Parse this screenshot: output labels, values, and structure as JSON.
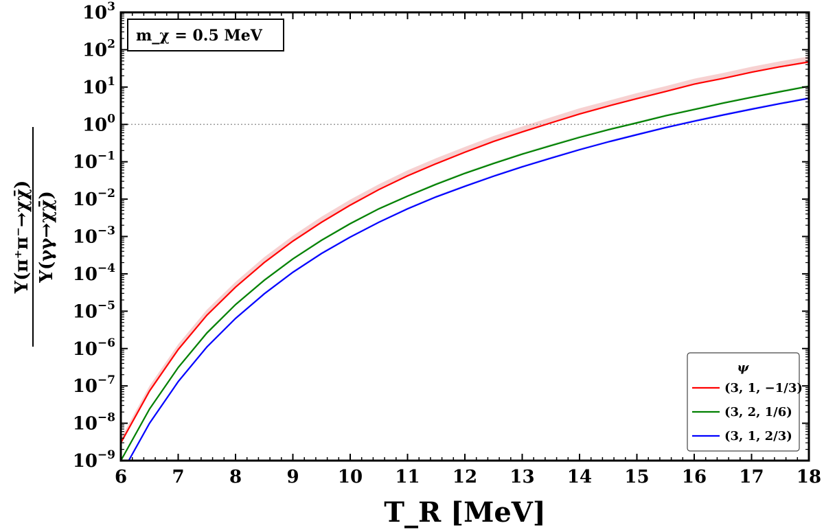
{
  "chart_data": {
    "type": "line",
    "annotation": "m_χ = 0.5 MeV",
    "xlabel": "T_R [MeV]",
    "ylabel_numerator": "Y(π⁺π⁻→χχ̄)",
    "ylabel_denominator": "Y(γγ→χχ̄)",
    "xlim": [
      6,
      18
    ],
    "ylim": [
      1e-09,
      1000
    ],
    "yscale": "log",
    "reference_line": {
      "y": 1,
      "style": "dotted",
      "color": "#999999"
    },
    "x_ticks": [
      "6",
      "7",
      "8",
      "9",
      "10",
      "11",
      "12",
      "13",
      "14",
      "15",
      "16",
      "17",
      "18"
    ],
    "y_ticks": [
      {
        "base": "10",
        "exp": "-9"
      },
      {
        "base": "10",
        "exp": "-8"
      },
      {
        "base": "10",
        "exp": "-7"
      },
      {
        "base": "10",
        "exp": "-6"
      },
      {
        "base": "10",
        "exp": "-5"
      },
      {
        "base": "10",
        "exp": "-4"
      },
      {
        "base": "10",
        "exp": "-3"
      },
      {
        "base": "10",
        "exp": "-2"
      },
      {
        "base": "10",
        "exp": "-1"
      },
      {
        "base": "10",
        "exp": "0"
      },
      {
        "base": "10",
        "exp": "1"
      },
      {
        "base": "10",
        "exp": "2"
      },
      {
        "base": "10",
        "exp": "3"
      }
    ],
    "legend": {
      "title": "ψ",
      "placement": "lower-right"
    },
    "x": [
      6,
      6.5,
      7,
      7.5,
      8,
      8.5,
      9,
      9.5,
      10,
      10.5,
      11,
      11.5,
      12,
      12.5,
      13,
      13.5,
      14,
      14.5,
      15,
      15.5,
      16,
      16.5,
      17,
      17.5,
      18
    ],
    "series": [
      {
        "name": "(3, 1, −1/3)",
        "color": "#ff0000",
        "band_color": "#f4c2c2",
        "values": [
          3e-09,
          7.3e-08,
          9.4e-07,
          7.8e-06,
          4.4e-05,
          0.0002,
          0.00075,
          0.0024,
          0.0069,
          0.018,
          0.042,
          0.089,
          0.18,
          0.35,
          0.63,
          1.1,
          1.9,
          3.1,
          4.9,
          7.6,
          12,
          17,
          25,
          35,
          47
        ],
        "band_upper": [
          4e-09,
          1e-07,
          1.3e-06,
          1.1e-05,
          6.1e-05,
          0.00028,
          0.00105,
          0.0034,
          0.0097,
          0.025,
          0.059,
          0.125,
          0.25,
          0.49,
          0.88,
          1.55,
          2.7,
          4.3,
          6.9,
          10.6,
          16.8,
          23.8,
          35,
          49,
          66
        ]
      },
      {
        "name": "(3, 2, 1/6)",
        "color": "#008000",
        "band_color": "#cfe8cf",
        "values": [
          1e-09,
          2.4e-08,
          3.1e-07,
          2.6e-06,
          1.5e-05,
          6.7e-05,
          0.00025,
          0.00079,
          0.0022,
          0.0055,
          0.012,
          0.025,
          0.049,
          0.09,
          0.16,
          0.27,
          0.45,
          0.72,
          1.1,
          1.7,
          2.5,
          3.7,
          5.3,
          7.5,
          10.5
        ],
        "band_upper": [
          1.1e-09,
          2.6e-08,
          3.4e-07,
          2.9e-06,
          1.65e-05,
          7.4e-05,
          0.000275,
          0.00087,
          0.0024,
          0.006,
          0.013,
          0.0275,
          0.054,
          0.099,
          0.176,
          0.3,
          0.5,
          0.79,
          1.2,
          1.87,
          2.75,
          4.1,
          5.8,
          8.3,
          11.5
        ]
      },
      {
        "name": "(3, 1, 2/3)",
        "color": "#0000ff",
        "band_color": "#d2d2f5",
        "values": [
          4.2e-10,
          1e-08,
          1.3e-07,
          1.1e-06,
          6.4e-06,
          2.9e-05,
          0.00011,
          0.00035,
          0.00096,
          0.0024,
          0.0055,
          0.0115,
          0.022,
          0.041,
          0.073,
          0.125,
          0.21,
          0.34,
          0.53,
          0.82,
          1.22,
          1.78,
          2.55,
          3.6,
          5.0
        ],
        "band_upper": [
          4.6e-10,
          1.1e-08,
          1.43e-07,
          1.2e-06,
          7e-06,
          3.2e-05,
          0.00012,
          0.000385,
          0.00105,
          0.0026,
          0.006,
          0.0126,
          0.024,
          0.045,
          0.08,
          0.137,
          0.23,
          0.37,
          0.58,
          0.9,
          1.34,
          1.96,
          2.8,
          3.96,
          5.5
        ]
      }
    ]
  }
}
